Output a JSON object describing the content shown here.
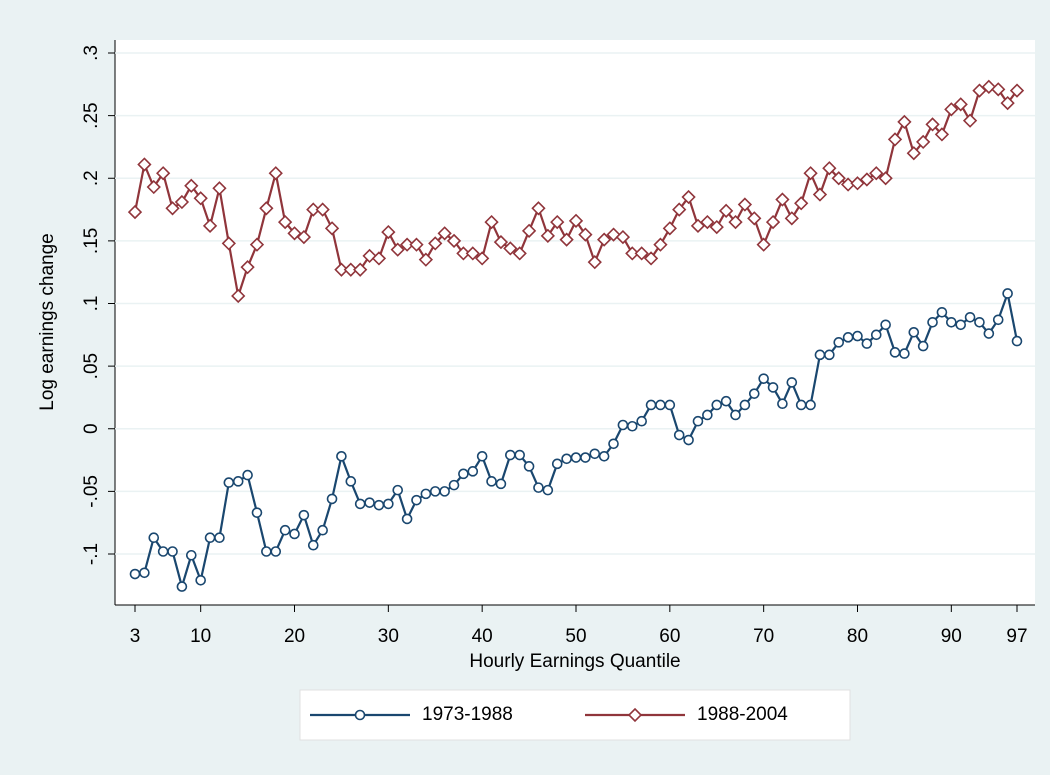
{
  "chart_data": {
    "type": "line",
    "x_label": "Hourly Earnings Quantile",
    "y_label": "Log earnings change",
    "x": [
      3,
      4,
      5,
      6,
      7,
      8,
      9,
      10,
      11,
      12,
      13,
      14,
      15,
      16,
      17,
      18,
      19,
      20,
      21,
      22,
      23,
      24,
      25,
      26,
      27,
      28,
      29,
      30,
      31,
      32,
      33,
      34,
      35,
      36,
      37,
      38,
      39,
      40,
      41,
      42,
      43,
      44,
      45,
      46,
      47,
      48,
      49,
      50,
      51,
      52,
      53,
      54,
      55,
      56,
      57,
      58,
      59,
      60,
      61,
      62,
      63,
      64,
      65,
      66,
      67,
      68,
      69,
      70,
      71,
      72,
      73,
      74,
      75,
      76,
      77,
      78,
      79,
      80,
      81,
      82,
      83,
      84,
      85,
      86,
      87,
      88,
      89,
      90,
      91,
      92,
      93,
      94,
      95,
      96,
      97
    ],
    "series": [
      {
        "name": "1973-1988",
        "color": "#1a476f",
        "marker": "circle",
        "values": [
          -0.116,
          -0.115,
          -0.087,
          -0.098,
          -0.098,
          -0.126,
          -0.101,
          -0.121,
          -0.087,
          -0.087,
          -0.043,
          -0.042,
          -0.037,
          -0.067,
          -0.098,
          -0.098,
          -0.081,
          -0.084,
          -0.069,
          -0.093,
          -0.081,
          -0.056,
          -0.022,
          -0.042,
          -0.06,
          -0.059,
          -0.061,
          -0.06,
          -0.049,
          -0.072,
          -0.057,
          -0.052,
          -0.05,
          -0.05,
          -0.045,
          -0.036,
          -0.034,
          -0.022,
          -0.042,
          -0.044,
          -0.021,
          -0.021,
          -0.03,
          -0.047,
          -0.049,
          -0.028,
          -0.024,
          -0.023,
          -0.023,
          -0.02,
          -0.022,
          -0.012,
          0.003,
          0.002,
          0.006,
          0.019,
          0.019,
          0.019,
          -0.005,
          -0.009,
          0.006,
          0.011,
          0.019,
          0.022,
          0.011,
          0.019,
          0.028,
          0.04,
          0.033,
          0.02,
          0.037,
          0.019,
          0.019,
          0.059,
          0.059,
          0.069,
          0.073,
          0.074,
          0.068,
          0.075,
          0.083,
          0.061,
          0.06,
          0.077,
          0.066,
          0.085,
          0.093,
          0.085,
          0.083,
          0.089,
          0.085,
          0.076,
          0.087,
          0.108,
          0.07
        ]
      },
      {
        "name": "1988-2004",
        "color": "#90353b",
        "marker": "diamond",
        "values": [
          0.173,
          0.211,
          0.193,
          0.204,
          0.176,
          0.181,
          0.194,
          0.184,
          0.162,
          0.192,
          0.148,
          0.106,
          0.129,
          0.147,
          0.176,
          0.204,
          0.165,
          0.156,
          0.153,
          0.175,
          0.175,
          0.16,
          0.127,
          0.127,
          0.127,
          0.138,
          0.136,
          0.157,
          0.143,
          0.147,
          0.147,
          0.135,
          0.148,
          0.156,
          0.15,
          0.14,
          0.14,
          0.136,
          0.165,
          0.149,
          0.144,
          0.14,
          0.158,
          0.176,
          0.154,
          0.165,
          0.151,
          0.166,
          0.155,
          0.133,
          0.151,
          0.155,
          0.153,
          0.14,
          0.14,
          0.136,
          0.147,
          0.16,
          0.175,
          0.185,
          0.162,
          0.165,
          0.161,
          0.174,
          0.165,
          0.179,
          0.168,
          0.147,
          0.165,
          0.183,
          0.168,
          0.18,
          0.204,
          0.187,
          0.208,
          0.2,
          0.195,
          0.196,
          0.199,
          0.204,
          0.2,
          0.231,
          0.245,
          0.22,
          0.229,
          0.243,
          0.235,
          0.255,
          0.259,
          0.246,
          0.27,
          0.273,
          0.271,
          0.26,
          0.27
        ]
      }
    ],
    "xlim": [
      3,
      97
    ],
    "xticks": [
      3,
      10,
      20,
      30,
      40,
      50,
      60,
      70,
      80,
      90,
      97
    ],
    "ylim": [
      -0.1,
      0.3
    ],
    "yticks": [
      {
        "value": -0.1,
        "label": "-.1"
      },
      {
        "value": -0.05,
        "label": "-.05"
      },
      {
        "value": 0,
        "label": "0"
      },
      {
        "value": 0.05,
        "label": ".05"
      },
      {
        "value": 0.1,
        "label": ".1"
      },
      {
        "value": 0.15,
        "label": ".15"
      },
      {
        "value": 0.2,
        "label": ".2"
      },
      {
        "value": 0.25,
        "label": ".25"
      },
      {
        "value": 0.3,
        "label": ".3"
      }
    ],
    "grid": true,
    "legend": "bottom"
  }
}
